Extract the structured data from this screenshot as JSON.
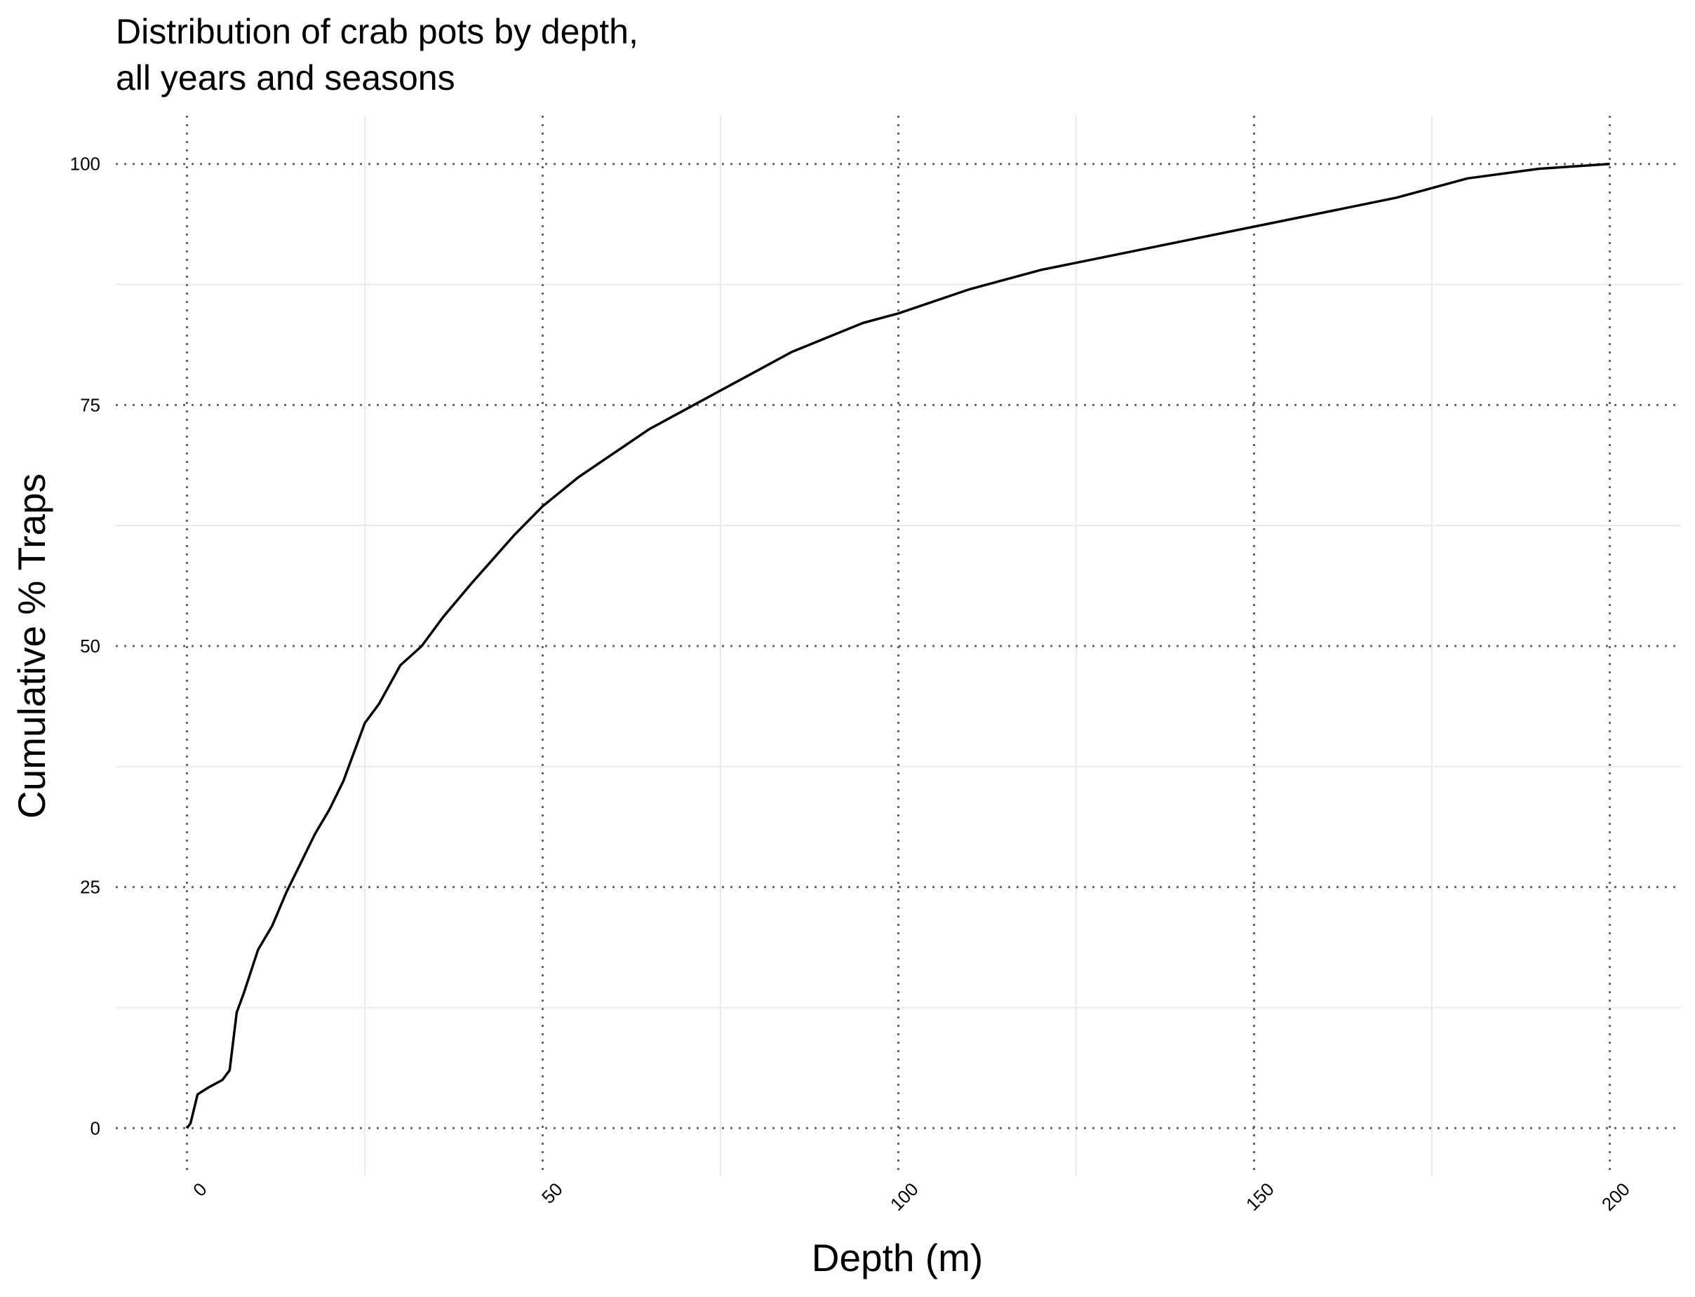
{
  "chart_data": {
    "type": "line",
    "title": [
      "Distribution of crab pots by depth,",
      "all years and seasons"
    ],
    "x_label": "Depth (m)",
    "y_label": "Cumulative % Traps",
    "x": [
      0,
      0.5,
      1,
      1.5,
      3,
      5,
      6,
      7,
      8,
      10,
      12,
      14,
      16,
      18,
      20,
      22,
      23,
      24,
      25,
      27,
      30,
      33,
      36,
      40,
      43,
      46,
      50,
      55,
      60,
      65,
      70,
      75,
      80,
      85,
      90,
      95,
      100,
      110,
      120,
      130,
      140,
      150,
      160,
      170,
      175,
      180,
      190,
      200
    ],
    "series": [
      {
        "name": "Cumulative % Traps",
        "color": "#000000",
        "values": [
          0,
          0.5,
          2,
          3.5,
          4.2,
          5,
          6,
          12,
          14,
          18.5,
          21,
          24.5,
          27.5,
          30.5,
          33,
          36,
          38,
          40,
          42,
          44,
          48,
          50,
          53,
          56.5,
          59,
          61.5,
          64.5,
          67.5,
          70,
          72.5,
          74.5,
          76.5,
          78.5,
          80.5,
          82,
          83.5,
          84.5,
          87,
          89,
          90.5,
          92,
          93.5,
          95,
          96.5,
          97.5,
          98.5,
          99.5,
          100
        ]
      }
    ],
    "xlim": [
      -10,
      210
    ],
    "ylim": [
      -5,
      105
    ],
    "xticks": [
      0,
      50,
      100,
      150,
      200
    ],
    "yticks": [
      0,
      25,
      50,
      75,
      100
    ],
    "x_minor_ticks": [
      25,
      75,
      125,
      175
    ],
    "y_minor_ticks": [
      12.5,
      37.5,
      62.5,
      87.5
    ],
    "grid": true
  }
}
